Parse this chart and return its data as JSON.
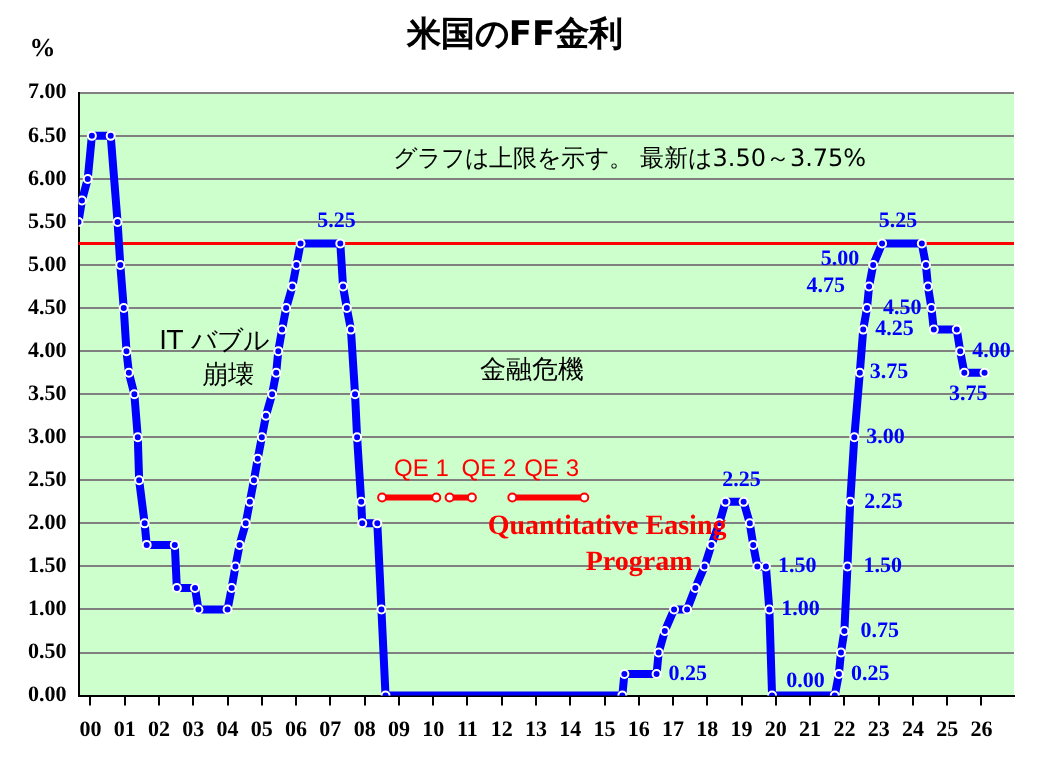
{
  "chart_data": {
    "type": "line",
    "title": "米国のFF金利",
    "ylabel": "%",
    "xlim": [
      -0.35,
      26.95
    ],
    "xticks": [
      {
        "value": 0,
        "label": "00"
      },
      {
        "value": 1,
        "label": "01"
      },
      {
        "value": 2,
        "label": "02"
      },
      {
        "value": 3,
        "label": "03"
      },
      {
        "value": 4,
        "label": "04"
      },
      {
        "value": 5,
        "label": "05"
      },
      {
        "value": 6,
        "label": "06"
      },
      {
        "value": 7,
        "label": "07"
      },
      {
        "value": 8,
        "label": "08"
      },
      {
        "value": 9,
        "label": "09"
      },
      10,
      11,
      12,
      13,
      14,
      15,
      16,
      17,
      18,
      19,
      20,
      21,
      22,
      23,
      24,
      25,
      26
    ],
    "ylim": [
      0,
      7
    ],
    "yticks": [
      {
        "value": 0,
        "label": "0.00"
      },
      {
        "value": 0.5,
        "label": "0.50"
      },
      {
        "value": 1,
        "label": "1.00"
      },
      {
        "value": 1.5,
        "label": "1.50"
      },
      {
        "value": 2,
        "label": "2.00"
      },
      {
        "value": 2.5,
        "label": "2.50"
      },
      {
        "value": 3,
        "label": "3.00"
      },
      {
        "value": 3.5,
        "label": "3.50"
      },
      {
        "value": 4,
        "label": "4.00"
      },
      {
        "value": 4.5,
        "label": "4.50"
      },
      {
        "value": 5,
        "label": "5.00"
      },
      {
        "value": 5.5,
        "label": "5.50"
      },
      {
        "value": 6,
        "label": "6.00"
      },
      {
        "value": 6.5,
        "label": "6.50"
      },
      {
        "value": 7,
        "label": "7.00"
      }
    ],
    "grid": "y",
    "legend": false,
    "marker": "circle",
    "ref_lines": [
      {
        "axis": "y",
        "value": 5.25,
        "color": "#ff0000"
      }
    ],
    "annotations": [
      "グラフは上限を示す。 最新は3.50～3.75%",
      "IT バブル",
      "崩壊",
      "金融危機",
      "Quantitative Easing\nProgram"
    ],
    "series": [
      {
        "color": "#0000ff",
        "x": [
          -0.35,
          -0.25,
          -0.08,
          0.04,
          0.59,
          0.79,
          0.87,
          0.97,
          1.05,
          1.12,
          1.28,
          1.38,
          1.42,
          1.58,
          1.64,
          2.46,
          2.52,
          3.05,
          3.15,
          4.0,
          4.12,
          4.23,
          4.35,
          4.53,
          4.65,
          4.77,
          4.88,
          5.0,
          5.12,
          5.3,
          5.42,
          5.48,
          5.59,
          5.71,
          5.89,
          6.01,
          6.13,
          7.29,
          7.37,
          7.48,
          7.6,
          7.72,
          7.78,
          7.9,
          7.93,
          8.37,
          8.49,
          8.61,
          15.52,
          15.58,
          16.52,
          16.58,
          16.76,
          17.03,
          17.41,
          17.65,
          17.92,
          18.12,
          18.35,
          18.53,
          19.06,
          19.24,
          19.34,
          19.46,
          19.71,
          19.81,
          19.89,
          21.72,
          21.84,
          21.9,
          22.0,
          22.09,
          22.17,
          22.29,
          22.45,
          22.55,
          22.66,
          22.72,
          22.84,
          23.1,
          24.26,
          24.38,
          24.44,
          24.54,
          24.61,
          25.28,
          25.38,
          25.5,
          26.09
        ],
        "values": [
          5.5,
          5.75,
          6.0,
          6.5,
          6.5,
          5.5,
          5.0,
          4.5,
          4.0,
          3.75,
          3.5,
          3.0,
          2.5,
          2.0,
          1.75,
          1.75,
          1.25,
          1.25,
          1.0,
          1.0,
          1.25,
          1.5,
          1.75,
          2.0,
          2.25,
          2.5,
          2.75,
          3.0,
          3.25,
          3.5,
          3.75,
          4.0,
          4.25,
          4.5,
          4.75,
          5.0,
          5.25,
          5.25,
          4.75,
          4.5,
          4.25,
          3.5,
          3.0,
          2.25,
          2.0,
          2.0,
          1.0,
          0,
          0,
          0.25,
          0.25,
          0.5,
          0.75,
          1.0,
          1.0,
          1.25,
          1.5,
          1.75,
          2.0,
          2.25,
          2.25,
          2.0,
          1.75,
          1.5,
          1.5,
          1.0,
          0,
          0,
          0.25,
          0.5,
          0.75,
          1.5,
          2.25,
          3.0,
          3.75,
          4.25,
          4.5,
          4.75,
          5.0,
          5.25,
          5.25,
          5.0,
          4.75,
          4.5,
          4.25,
          4.25,
          4.0,
          3.75,
          3.75
        ],
        "value_labels": [
          null,
          null,
          null,
          null,
          null,
          null,
          null,
          null,
          null,
          null,
          null,
          null,
          null,
          null,
          null,
          null,
          null,
          null,
          null,
          null,
          null,
          null,
          null,
          null,
          null,
          null,
          null,
          null,
          null,
          null,
          null,
          null,
          null,
          null,
          null,
          null,
          "5.25",
          null,
          null,
          null,
          null,
          null,
          null,
          null,
          null,
          null,
          null,
          null,
          null,
          null,
          "0.25",
          null,
          null,
          null,
          null,
          null,
          null,
          null,
          null,
          "2.25",
          null,
          null,
          null,
          null,
          "1.50",
          "1.00",
          null,
          "0.00",
          "0.25",
          null,
          "0.75",
          "1.50",
          "2.25",
          "3.00",
          "3.75",
          "4.25",
          null,
          "4.75",
          "5.00",
          "5.25",
          null,
          null,
          null,
          "4.50",
          null,
          null,
          "4.00",
          "3.75",
          null
        ]
      },
      {
        "name": "QE 1",
        "color": "#ff0000",
        "x": [
          8.51,
          10.09
        ],
        "values": [
          2.3,
          2.3
        ]
      },
      {
        "name": "QE 2",
        "color": "#ff0000",
        "x": [
          10.48,
          11.13
        ],
        "values": [
          2.3,
          2.3
        ]
      },
      {
        "name": "QE 3",
        "color": "#ff0000",
        "x": [
          12.31,
          14.41
        ],
        "values": [
          2.3,
          2.3
        ]
      }
    ]
  }
}
